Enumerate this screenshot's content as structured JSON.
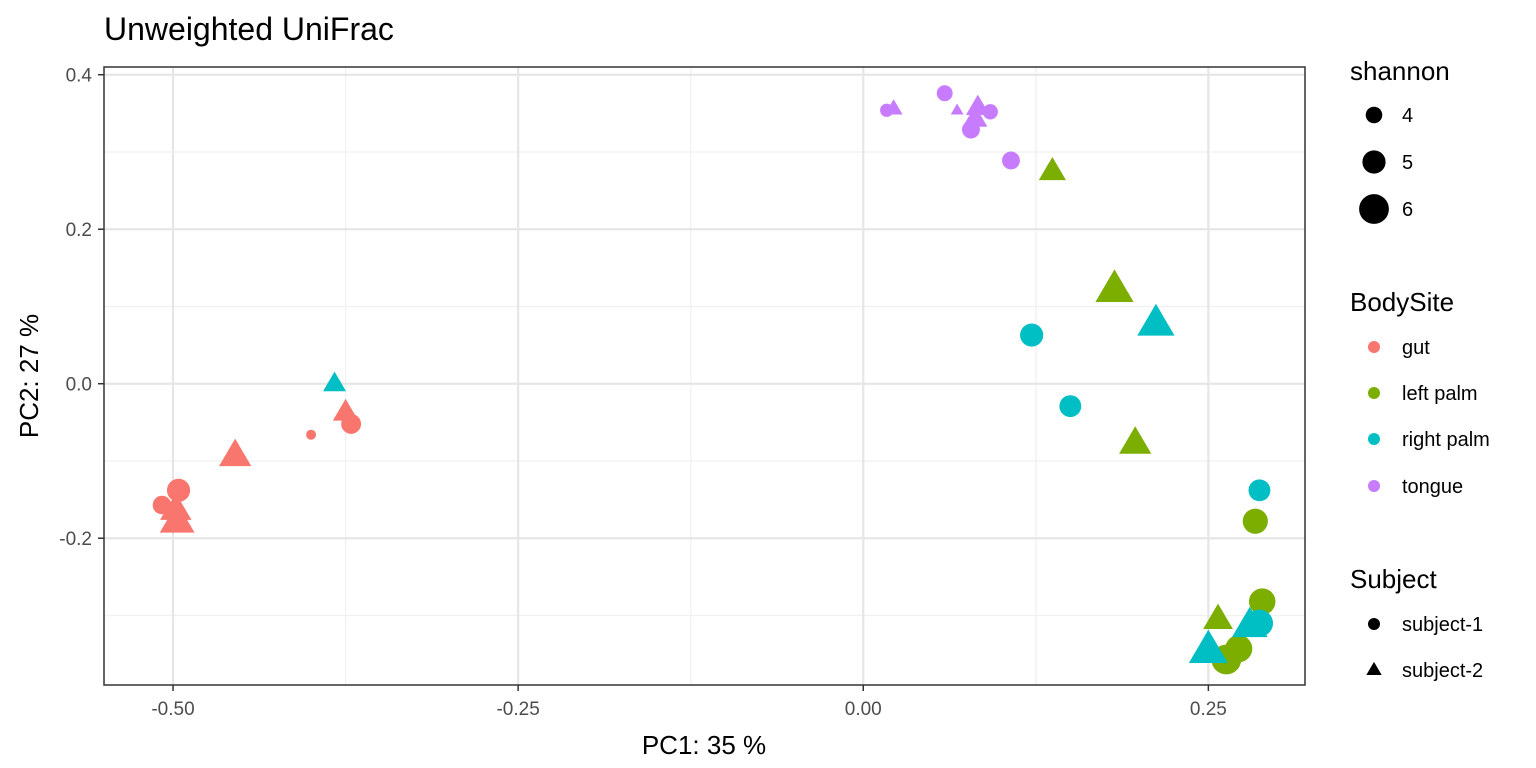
{
  "chart_data": {
    "type": "scatter",
    "title": "Unweighted UniFrac",
    "xlabel": "PC1:  35 %",
    "ylabel": "PC2:  27 %",
    "xlim": [
      -0.55,
      0.32
    ],
    "ylim": [
      -0.39,
      0.41
    ],
    "xticks": [
      -0.5,
      -0.25,
      0.0,
      0.25
    ],
    "xtick_labels": [
      "-0.50",
      "-0.25",
      "0.00",
      "0.25"
    ],
    "yticks": [
      -0.2,
      0.0,
      0.2,
      0.4
    ],
    "ytick_labels": [
      "-0.2",
      "0.0",
      "0.2",
      "0.4"
    ],
    "grid": true,
    "legend_placement": "right",
    "colors": {
      "gut": "#F8766D",
      "left palm": "#7CAE00",
      "right palm": "#00BFC4",
      "tongue": "#C77CFF"
    },
    "legends": {
      "size": {
        "title": "shannon",
        "entries": [
          4,
          5,
          6
        ],
        "labels": [
          "4",
          "5",
          "6"
        ]
      },
      "color": {
        "title": "BodySite",
        "entries": [
          "gut",
          "left palm",
          "right palm",
          "tongue"
        ]
      },
      "shape": {
        "title": "Subject",
        "entries": [
          "subject-1",
          "subject-2"
        ],
        "shapes": [
          "circle",
          "triangle"
        ]
      }
    },
    "points": [
      {
        "x": -0.508,
        "y": -0.157,
        "body_site": "gut",
        "subject": "subject-1",
        "shannon": 4.3
      },
      {
        "x": -0.496,
        "y": -0.138,
        "body_site": "gut",
        "subject": "subject-1",
        "shannon": 5.0
      },
      {
        "x": -0.498,
        "y": -0.163,
        "body_site": "gut",
        "subject": "subject-2",
        "shannon": 5.2
      },
      {
        "x": -0.497,
        "y": -0.178,
        "body_site": "gut",
        "subject": "subject-2",
        "shannon": 5.6
      },
      {
        "x": -0.455,
        "y": -0.093,
        "body_site": "gut",
        "subject": "subject-2",
        "shannon": 5.3
      },
      {
        "x": -0.4,
        "y": -0.066,
        "body_site": "gut",
        "subject": "subject-1",
        "shannon": 3.0
      },
      {
        "x": -0.375,
        "y": -0.037,
        "body_site": "gut",
        "subject": "subject-2",
        "shannon": 4.5
      },
      {
        "x": -0.371,
        "y": -0.052,
        "body_site": "gut",
        "subject": "subject-1",
        "shannon": 4.5
      },
      {
        "x": -0.383,
        "y": 0.0,
        "body_site": "right palm",
        "subject": "subject-2",
        "shannon": 4.2
      },
      {
        "x": 0.017,
        "y": 0.354,
        "body_site": "tongue",
        "subject": "subject-1",
        "shannon": 3.5
      },
      {
        "x": 0.022,
        "y": 0.356,
        "body_site": "tongue",
        "subject": "subject-2",
        "shannon": 3.6
      },
      {
        "x": 0.059,
        "y": 0.376,
        "body_site": "tongue",
        "subject": "subject-1",
        "shannon": 3.9
      },
      {
        "x": 0.068,
        "y": 0.354,
        "body_site": "tongue",
        "subject": "subject-2",
        "shannon": 3.0
      },
      {
        "x": 0.078,
        "y": 0.329,
        "body_site": "tongue",
        "subject": "subject-1",
        "shannon": 4.2
      },
      {
        "x": 0.083,
        "y": 0.358,
        "body_site": "tongue",
        "subject": "subject-2",
        "shannon": 4.3
      },
      {
        "x": 0.081,
        "y": 0.343,
        "body_site": "tongue",
        "subject": "subject-2",
        "shannon": 4.4
      },
      {
        "x": 0.092,
        "y": 0.352,
        "body_site": "tongue",
        "subject": "subject-1",
        "shannon": 3.8
      },
      {
        "x": 0.107,
        "y": 0.289,
        "body_site": "tongue",
        "subject": "subject-1",
        "shannon": 4.2
      },
      {
        "x": 0.137,
        "y": 0.275,
        "body_site": "left palm",
        "subject": "subject-2",
        "shannon": 4.7
      },
      {
        "x": 0.182,
        "y": 0.122,
        "body_site": "left palm",
        "subject": "subject-2",
        "shannon": 6.0
      },
      {
        "x": 0.212,
        "y": 0.078,
        "body_site": "right palm",
        "subject": "subject-2",
        "shannon": 5.9
      },
      {
        "x": 0.122,
        "y": 0.063,
        "body_site": "right palm",
        "subject": "subject-1",
        "shannon": 5.0
      },
      {
        "x": 0.15,
        "y": -0.029,
        "body_site": "right palm",
        "subject": "subject-1",
        "shannon": 4.8
      },
      {
        "x": 0.197,
        "y": -0.077,
        "body_site": "left palm",
        "subject": "subject-2",
        "shannon": 5.3
      },
      {
        "x": 0.287,
        "y": -0.138,
        "body_site": "right palm",
        "subject": "subject-1",
        "shannon": 4.8
      },
      {
        "x": 0.284,
        "y": -0.178,
        "body_site": "left palm",
        "subject": "subject-1",
        "shannon": 5.3
      },
      {
        "x": 0.289,
        "y": -0.282,
        "body_site": "left palm",
        "subject": "subject-1",
        "shannon": 5.5
      },
      {
        "x": 0.257,
        "y": -0.305,
        "body_site": "left palm",
        "subject": "subject-2",
        "shannon": 5.0
      },
      {
        "x": 0.272,
        "y": -0.343,
        "body_site": "left palm",
        "subject": "subject-1",
        "shannon": 5.6
      },
      {
        "x": 0.263,
        "y": -0.357,
        "body_site": "left palm",
        "subject": "subject-1",
        "shannon": 6.0
      },
      {
        "x": 0.28,
        "y": -0.313,
        "body_site": "right palm",
        "subject": "subject-2",
        "shannon": 5.7
      },
      {
        "x": 0.287,
        "y": -0.31,
        "body_site": "right palm",
        "subject": "subject-1",
        "shannon": 5.6
      },
      {
        "x": 0.25,
        "y": -0.345,
        "body_site": "right palm",
        "subject": "subject-2",
        "shannon": 6.1
      }
    ]
  }
}
